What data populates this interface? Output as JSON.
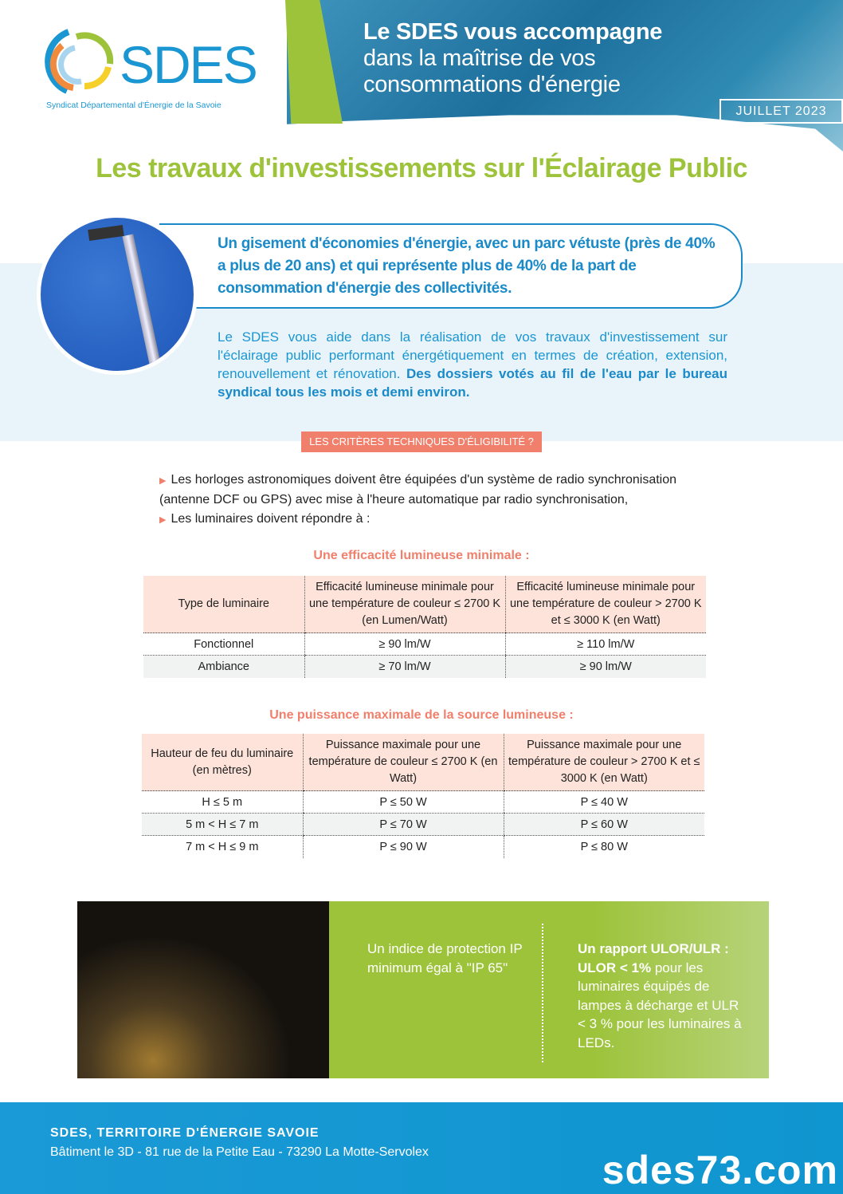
{
  "header": {
    "logo_text": "SDES",
    "logo_subtitle": "Syndicat Départemental d'Énergie de la Savoie",
    "hero_bold": "Le SDES",
    "hero_line1_rest": " vous accompagne",
    "hero_line2": "dans la maîtrise de vos",
    "hero_line3": "consommations d'énergie",
    "date": "JUILLET 2023"
  },
  "title": "Les travaux d'investissements sur l'Éclairage Public",
  "callout": "Un gisement d'économies d'énergie, avec un parc vétuste (près de 40% a plus de 20 ans) et qui représente plus de 40% de la part de consommation d'énergie des collectivités.",
  "intro": {
    "text": "Le SDES vous aide dans la réalisation de vos travaux d'investissement sur l'éclairage public performant énergétiquement en termes de création, extension, renouvellement et rénovation. ",
    "bold": "Des dossiers votés au fil de l'eau par le bureau syndical tous les mois et demi environ."
  },
  "badge": "LES CRITÈRES TECHNIQUES D'ÉLIGIBILITÉ ?",
  "bullets": [
    "Les horloges astronomiques doivent être équipées d'un système de radio synchronisation (antenne DCF ou GPS) avec mise à l'heure automatique par radio synchronisation,",
    "Les luminaires doivent répondre à :"
  ],
  "table1": {
    "title": "Une efficacité lumineuse minimale :",
    "headers": [
      "Type de luminaire",
      "Efficacité lumineuse minimale pour une température de couleur ≤ 2700 K (en Lumen/Watt)",
      "Efficacité lumineuse minimale pour une température de couleur > 2700 K et ≤ 3000 K (en Watt)"
    ],
    "rows": [
      [
        "Fonctionnel",
        "≥ 90 lm/W",
        "≥ 110 lm/W"
      ],
      [
        "Ambiance",
        "≥ 70 lm/W",
        "≥ 90 lm/W"
      ]
    ]
  },
  "table2": {
    "title": "Une puissance maximale de la source lumineuse :",
    "headers": [
      "Hauteur de feu du luminaire (en mètres)",
      "Puissance maximale pour une température de couleur ≤ 2700 K (en Watt)",
      "Puissance maximale pour une température de couleur > 2700 K et ≤ 3000 K (en Watt)"
    ],
    "rows": [
      [
        "H ≤ 5 m",
        "P ≤ 50 W",
        "P ≤ 40 W"
      ],
      [
        "5 m < H ≤ 7 m",
        "P ≤ 70 W",
        "P ≤ 60 W"
      ],
      [
        "7 m < H ≤ 9 m",
        "P ≤ 90 W",
        "P ≤ 80 W"
      ]
    ]
  },
  "green": {
    "left": "Un indice de protection IP minimum égal à \"IP 65\"",
    "right_bold1": "Un rapport ULOR/ULR :",
    "right_bold2": "ULOR < 1%",
    "right_rest": " pour les luminaires équipés de lampes à décharge et ULR < 3 % pour les luminaires à LEDs."
  },
  "footer": {
    "name": "SDES, TERRITOIRE D'ÉNERGIE SAVOIE",
    "address": "Bâtiment le 3D - 81 rue de la Petite Eau - 73290 La Motte-Servolex",
    "website": "sdes73.com"
  },
  "colors": {
    "green": "#9dc33b",
    "blue": "#1a96d2",
    "salmon": "#f07f6b"
  }
}
